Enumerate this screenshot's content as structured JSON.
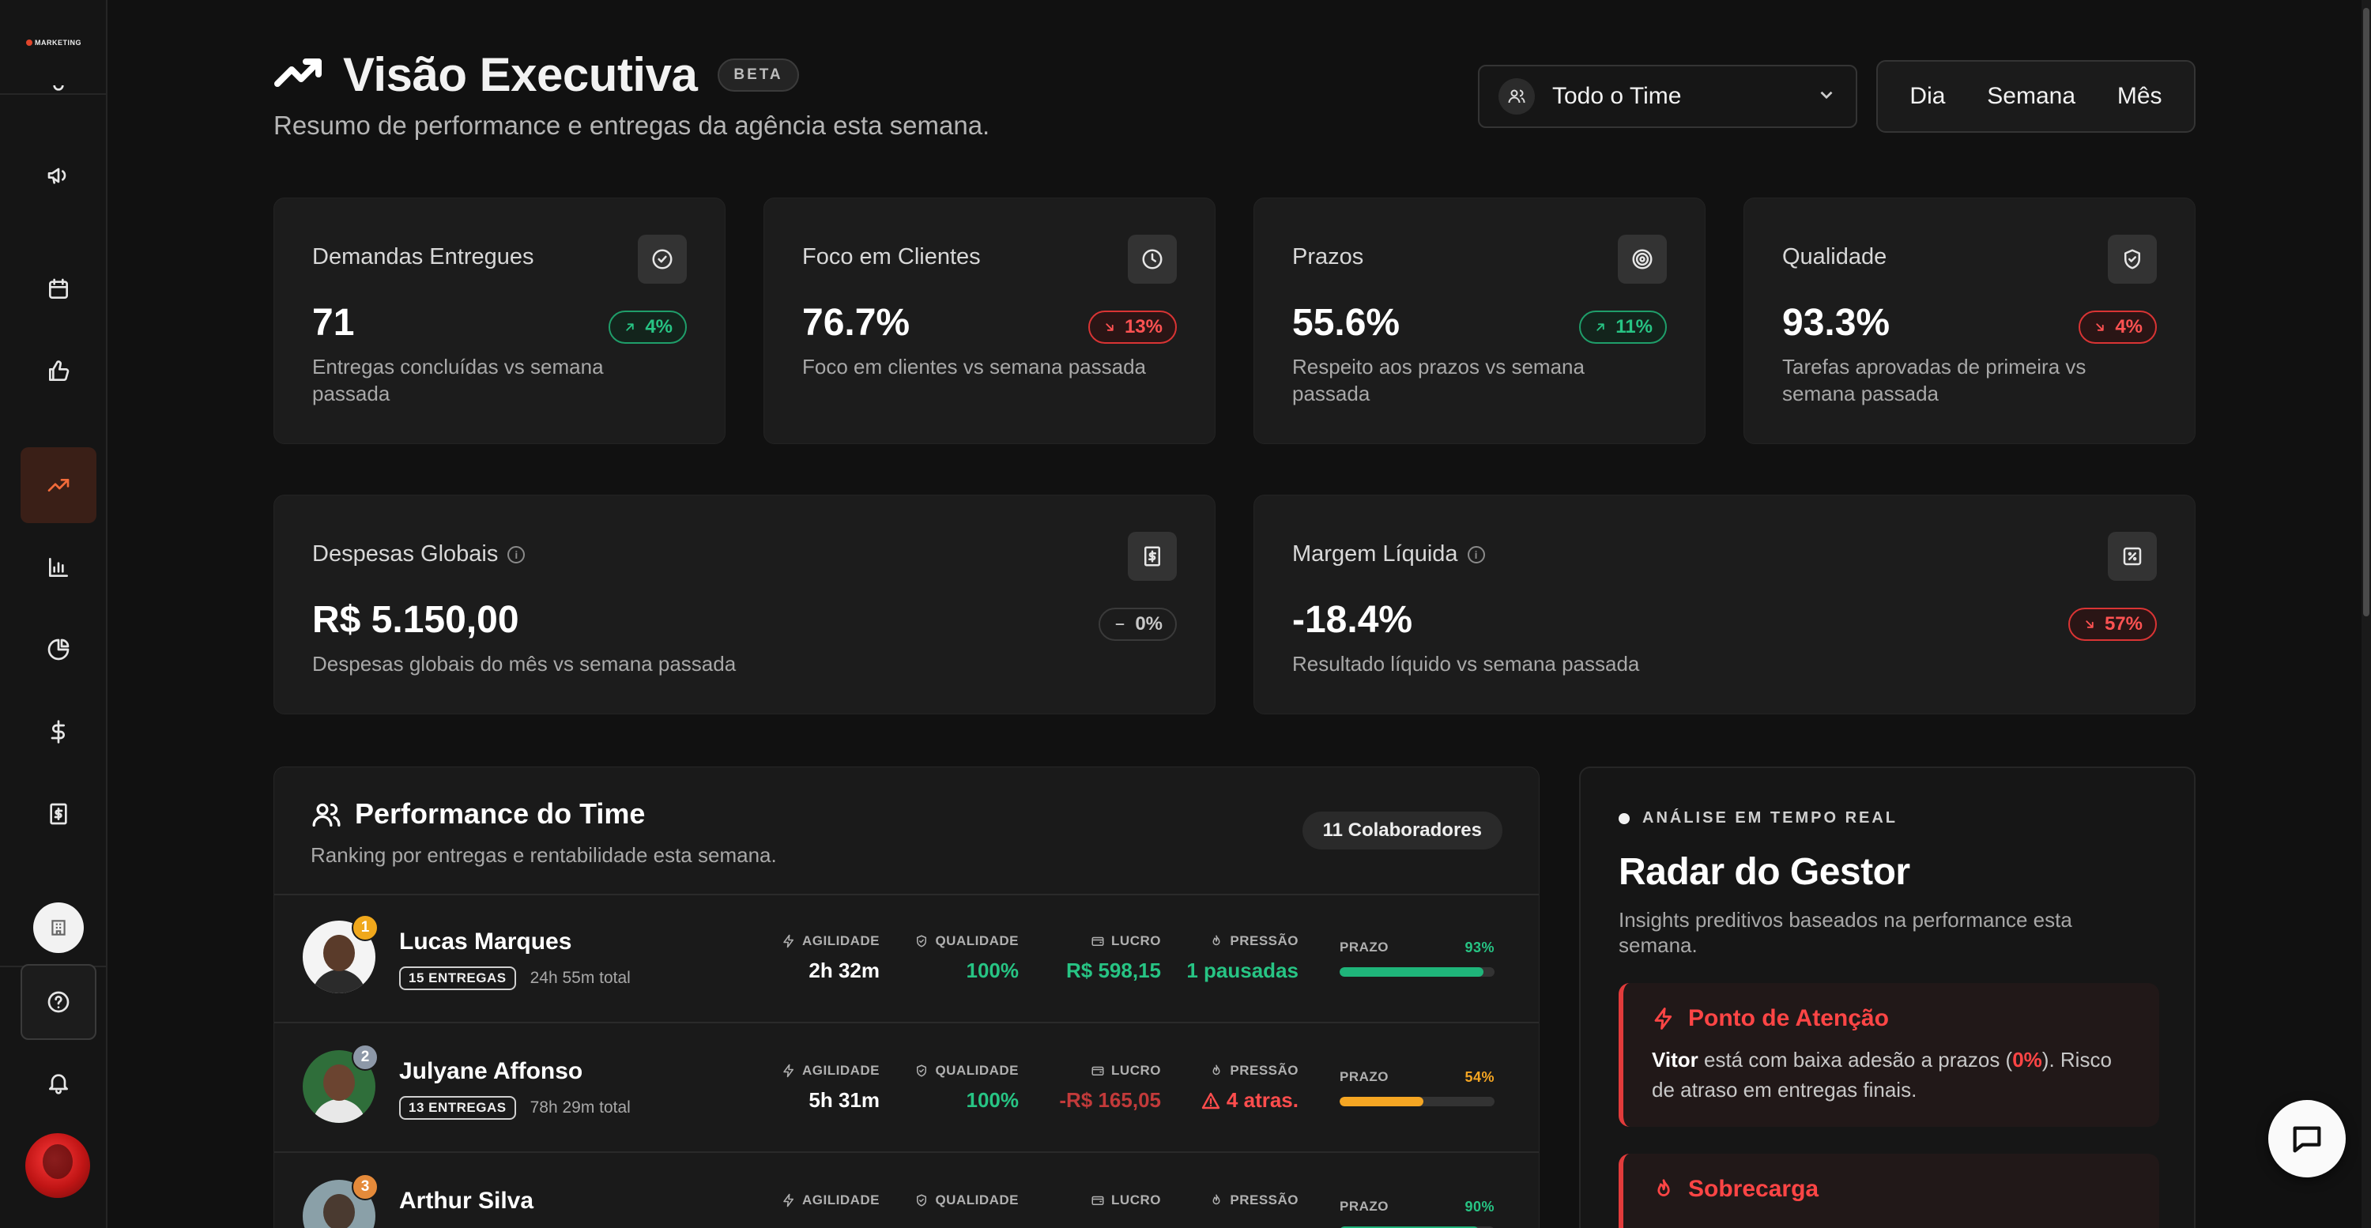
{
  "brand": {
    "logo_text": "MARKETING"
  },
  "header": {
    "title": "Visão Executiva",
    "badge": "BETA",
    "subtitle": "Resumo de performance e entregas da agência esta semana.",
    "team_filter": "Todo o Time",
    "periods": [
      "Dia",
      "Semana",
      "Mês"
    ]
  },
  "kpis": [
    {
      "title": "Demandas Entregues",
      "value": "71",
      "delta": "4%",
      "trend": "up",
      "desc": "Entregas concluídas vs semana passada",
      "icon": "check-circle-icon"
    },
    {
      "title": "Foco em Clientes",
      "value": "76.7%",
      "delta": "13%",
      "trend": "down",
      "desc": "Foco em clientes vs semana passada",
      "icon": "clock-icon"
    },
    {
      "title": "Prazos",
      "value": "55.6%",
      "delta": "11%",
      "trend": "up",
      "desc": "Respeito aos prazos vs semana passada",
      "icon": "target-icon"
    },
    {
      "title": "Qualidade",
      "value": "93.3%",
      "delta": "4%",
      "trend": "down",
      "desc": "Tarefas aprovadas de primeira vs semana passada",
      "icon": "shield-check-icon"
    }
  ],
  "finance": [
    {
      "title": "Despesas Globais",
      "value": "R$ 5.150,00",
      "delta": "0%",
      "trend": "flat",
      "desc": "Despesas globais do mês vs semana passada",
      "icon": "receipt-icon"
    },
    {
      "title": "Margem Líquida",
      "value": "-18.4%",
      "delta": "57%",
      "trend": "down",
      "desc": "Resultado líquido vs semana passada",
      "icon": "percent-icon"
    }
  ],
  "team": {
    "title": "Performance do Time",
    "subtitle": "Ranking por entregas e rentabilidade esta semana.",
    "collaborators": "11 Colaboradores",
    "labels": {
      "agility": "AGILIDADE",
      "quality": "QUALIDADE",
      "profit": "LUCRO",
      "pressure": "PRESSÃO",
      "deadline": "PRAZO"
    },
    "members": [
      {
        "rank": "1",
        "name": "Lucas Marques",
        "deliveries": "15 ENTREGAS",
        "total_time": "24h 55m total",
        "agility": "2h 32m",
        "quality": "100%",
        "profit": "R$ 598,15",
        "pressure": "1 pausadas",
        "deadline_pct": "93%",
        "deadline_value": 93,
        "deadline_color": "#1fb57a"
      },
      {
        "rank": "2",
        "name": "Julyane Affonso",
        "deliveries": "13 ENTREGAS",
        "total_time": "78h 29m total",
        "agility": "5h 31m",
        "quality": "100%",
        "profit": "-R$ 165,05",
        "pressure": "4 atras.",
        "deadline_pct": "54%",
        "deadline_value": 54,
        "deadline_color": "#f5a623"
      },
      {
        "rank": "3",
        "name": "Arthur Silva",
        "deadline_pct": "90%",
        "deadline_value": 90,
        "deadline_color": "#1fb57a"
      }
    ]
  },
  "radar": {
    "live_label": "ANÁLISE EM TEMPO REAL",
    "title": "Radar do Gestor",
    "subtitle": "Insights preditivos baseados na performance esta semana.",
    "alert1": {
      "title": "Ponto de Atenção",
      "name": "Vitor",
      "text_a": " está com baixa adesão a prazos (",
      "pct": "0%",
      "text_b": "). Risco de atraso em entregas finais."
    },
    "alert2": {
      "title": "Sobrecarga"
    }
  },
  "colors": {
    "accent": "#f26b3a",
    "positive": "#27c484",
    "negative": "#ff4d4d"
  }
}
